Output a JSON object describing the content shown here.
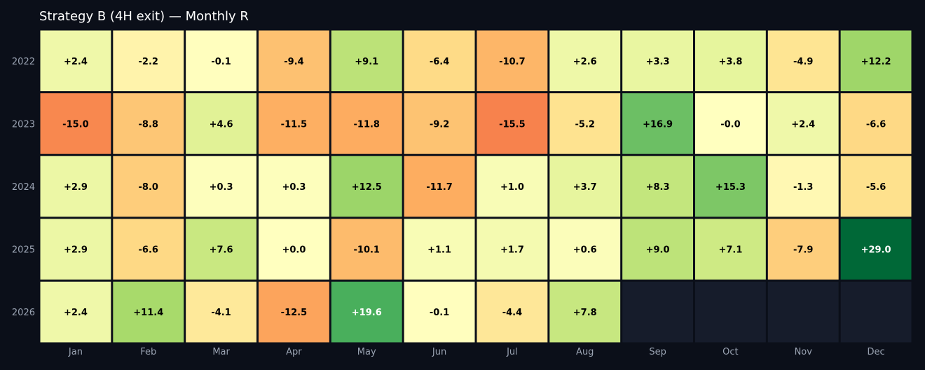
{
  "chart_data": {
    "type": "heatmap",
    "title": "Strategy B (4H exit) — Monthly R",
    "xlabel": "",
    "ylabel": "",
    "columns": [
      "Jan",
      "Feb",
      "Mar",
      "Apr",
      "May",
      "Jun",
      "Jul",
      "Aug",
      "Sep",
      "Oct",
      "Nov",
      "Dec"
    ],
    "rows": [
      "2022",
      "2023",
      "2024",
      "2025",
      "2026"
    ],
    "values": [
      [
        "+2.4",
        "-2.2",
        "-0.1",
        "-9.4",
        "+9.1",
        "-6.4",
        "-10.7",
        "+2.6",
        "+3.3",
        "+3.8",
        "-4.9",
        "+12.2"
      ],
      [
        "-15.0",
        "-8.8",
        "+4.6",
        "-11.5",
        "-11.8",
        "-9.2",
        "-15.5",
        "-5.2",
        "+16.9",
        "-0.0",
        "+2.4",
        "-6.6"
      ],
      [
        "+2.9",
        "-8.0",
        "+0.3",
        "+0.3",
        "+12.5",
        "-11.7",
        "+1.0",
        "+3.7",
        "+8.3",
        "+15.3",
        "-1.3",
        "-5.6"
      ],
      [
        "+2.9",
        "-6.6",
        "+7.6",
        "+0.0",
        "-10.1",
        "+1.1",
        "+1.7",
        "+0.6",
        "+9.0",
        "+7.1",
        "-7.9",
        "+29.0"
      ],
      [
        "+2.4",
        "+11.4",
        "-4.1",
        "-12.5",
        "+19.6",
        "-0.1",
        "-4.4",
        "+7.8",
        null,
        null,
        null,
        null
      ]
    ],
    "colormap": "RdYlGn",
    "color_range": [
      -29.0,
      29.0
    ],
    "empty_cell_color": "#161c2b",
    "grid": false,
    "legend": "none"
  },
  "colors": {
    "background": "#0b0f19",
    "title": "#ffffff",
    "tick_label": "#9aa3b2",
    "cell_border": "#0b0f19",
    "text_dark": "#000000",
    "text_light": "#ffffff"
  }
}
